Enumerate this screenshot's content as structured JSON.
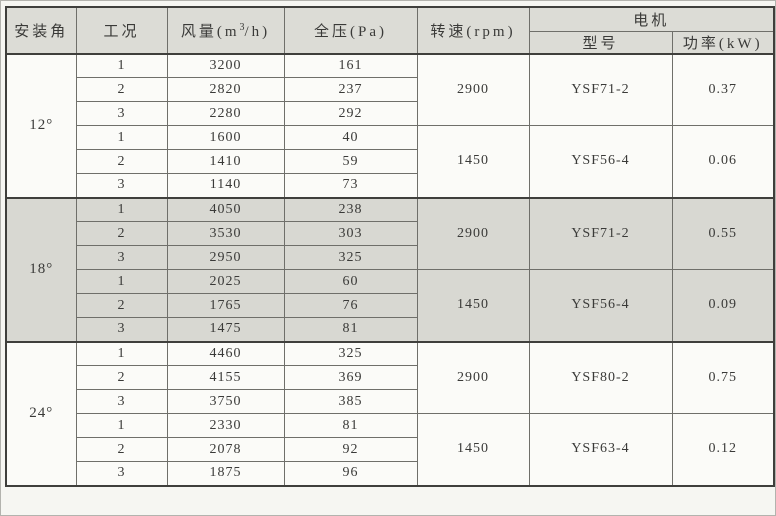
{
  "colors": {
    "header_bg": "#dcdcd6",
    "shaded_group_bg": "#d8d8d2",
    "row_bg": "#fbfbf8",
    "border_dark": "#3f3f3c",
    "border_light": "#6f6f6a",
    "text": "#3a3a38",
    "page_bg": "#f6f6f2"
  },
  "table": {
    "headers": {
      "angle": "安装角",
      "condition": "工况",
      "airflow_pre": "风量(m",
      "airflow_sup": "3",
      "airflow_post": "/h)",
      "pressure": "全压(Pa)",
      "speed": "转速(rpm)",
      "motor": "电机",
      "model": "型号",
      "power": "功率(kW)"
    },
    "groups": [
      {
        "angle": "12°",
        "shaded": false,
        "subgroups": [
          {
            "speed": "2900",
            "model": "YSF71-2",
            "power": "0.37",
            "rows": [
              {
                "cond": "1",
                "flow": "3200",
                "press": "161"
              },
              {
                "cond": "2",
                "flow": "2820",
                "press": "237"
              },
              {
                "cond": "3",
                "flow": "2280",
                "press": "292"
              }
            ]
          },
          {
            "speed": "1450",
            "model": "YSF56-4",
            "power": "0.06",
            "rows": [
              {
                "cond": "1",
                "flow": "1600",
                "press": "40"
              },
              {
                "cond": "2",
                "flow": "1410",
                "press": "59"
              },
              {
                "cond": "3",
                "flow": "1140",
                "press": "73"
              }
            ]
          }
        ]
      },
      {
        "angle": "18°",
        "shaded": true,
        "subgroups": [
          {
            "speed": "2900",
            "model": "YSF71-2",
            "power": "0.55",
            "rows": [
              {
                "cond": "1",
                "flow": "4050",
                "press": "238"
              },
              {
                "cond": "2",
                "flow": "3530",
                "press": "303"
              },
              {
                "cond": "3",
                "flow": "2950",
                "press": "325"
              }
            ]
          },
          {
            "speed": "1450",
            "model": "YSF56-4",
            "power": "0.09",
            "rows": [
              {
                "cond": "1",
                "flow": "2025",
                "press": "60"
              },
              {
                "cond": "2",
                "flow": "1765",
                "press": "76"
              },
              {
                "cond": "3",
                "flow": "1475",
                "press": "81"
              }
            ]
          }
        ]
      },
      {
        "angle": "24°",
        "shaded": false,
        "subgroups": [
          {
            "speed": "2900",
            "model": "YSF80-2",
            "power": "0.75",
            "rows": [
              {
                "cond": "1",
                "flow": "4460",
                "press": "325"
              },
              {
                "cond": "2",
                "flow": "4155",
                "press": "369"
              },
              {
                "cond": "3",
                "flow": "3750",
                "press": "385"
              }
            ]
          },
          {
            "speed": "1450",
            "model": "YSF63-4",
            "power": "0.12",
            "rows": [
              {
                "cond": "1",
                "flow": "2330",
                "press": "81"
              },
              {
                "cond": "2",
                "flow": "2078",
                "press": "92"
              },
              {
                "cond": "3",
                "flow": "1875",
                "press": "96"
              }
            ]
          }
        ]
      }
    ]
  }
}
